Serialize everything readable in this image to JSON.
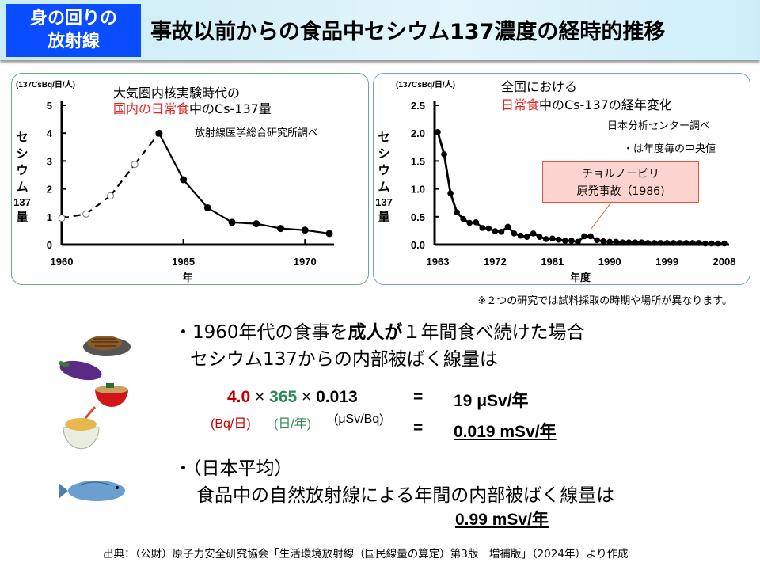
{
  "header": {
    "badge_line1": "身の回りの",
    "badge_line2": "放射線",
    "title": "事故以前からの食品中セシウム137濃度の経時的推移"
  },
  "chart_data": [
    {
      "type": "line",
      "unit": "(137CsBq/日/人)",
      "title_line1": "大気圏内核実験時代の",
      "title_line2_red": "国内の日常食",
      "title_line2_rest": "中のCs-137量",
      "source": "放射線医学総合研究所調べ",
      "ylabel": [
        "セ",
        "シ",
        "ウ",
        "ム",
        "137",
        "量"
      ],
      "xlabel": "年",
      "ylim": [
        0,
        5
      ],
      "yticks": [
        "0",
        "1",
        "2",
        "3",
        "4",
        "5"
      ],
      "xlim": [
        1960,
        1971
      ],
      "xticks": [
        "1960",
        "1965",
        "1970"
      ],
      "x": [
        1960,
        1961,
        1962,
        1963,
        1964,
        1965,
        1966,
        1967,
        1968,
        1969,
        1970,
        1971
      ],
      "y": [
        0.95,
        1.1,
        1.75,
        2.88,
        4.0,
        2.33,
        1.32,
        0.8,
        0.75,
        0.58,
        0.52,
        0.4
      ],
      "estimated_until": 1964
    },
    {
      "type": "line",
      "unit": "(137CsBq/日/人)",
      "title_line1": "全国における",
      "title_line2_red": "日常食",
      "title_line2_rest": "中のCs-137の経年変化",
      "source": "日本分析センター調べ",
      "note": "・は年度毎の中央値",
      "ylabel": [
        "セ",
        "シ",
        "ウ",
        "ム",
        "137",
        "量"
      ],
      "xlabel": "年度",
      "ylim": [
        0,
        2.5
      ],
      "yticks": [
        "0.0",
        "0.5",
        "1.0",
        "1.5",
        "2.0",
        "2.5"
      ],
      "xlim": [
        1963,
        2008
      ],
      "xticks": [
        "1963",
        "1972",
        "1981",
        "1990",
        "1999",
        "2008"
      ],
      "x": [
        1963,
        1964,
        1965,
        1966,
        1967,
        1968,
        1969,
        1970,
        1971,
        1972,
        1973,
        1974,
        1975,
        1976,
        1977,
        1978,
        1979,
        1980,
        1981,
        1982,
        1983,
        1984,
        1985,
        1986,
        1987,
        1988,
        1989,
        1990,
        1991,
        1992,
        1993,
        1994,
        1995,
        1996,
        1997,
        1998,
        1999,
        2000,
        2001,
        2002,
        2003,
        2004,
        2005,
        2006,
        2007,
        2008
      ],
      "y": [
        2.02,
        1.62,
        0.92,
        0.58,
        0.46,
        0.39,
        0.4,
        0.3,
        0.29,
        0.24,
        0.23,
        0.32,
        0.2,
        0.16,
        0.14,
        0.2,
        0.14,
        0.1,
        0.11,
        0.09,
        0.07,
        0.07,
        0.05,
        0.15,
        0.15,
        0.08,
        0.06,
        0.05,
        0.05,
        0.04,
        0.04,
        0.04,
        0.04,
        0.03,
        0.03,
        0.03,
        0.03,
        0.03,
        0.03,
        0.03,
        0.03,
        0.03,
        0.02,
        0.02,
        0.02,
        0.02
      ],
      "annotation": {
        "line1": "チョルノービリ",
        "line2": "原発事故（1986)"
      }
    }
  ],
  "note": "※２つの研究では試料採取の時期や場所が異なります。",
  "bullet1": {
    "line1_a": "・1960年代の食事を",
    "line1_bold": "成人が",
    "line1_b": "１年間食べ続けた場合",
    "line2": "セシウム137からの内部被ばく線量は"
  },
  "formula": {
    "v1": "4.0",
    "x1": "×",
    "v2": "365",
    "x2": "×",
    "v3": "0.013",
    "eq": "=",
    "r1": "19 μSv/年",
    "u1": "(Bq/日)",
    "u2": "(日/年)",
    "u3": "(μSv/Bq)",
    "eq2": "=",
    "r2": "0.019 mSv/年"
  },
  "bullet2": {
    "line1": "・（日本平均）",
    "line2": "食品中の自然放射線による年間の内部被ばく線量は",
    "value": "0.99 mSv/年"
  },
  "source": "出典：（公財）原子力安全研究協会「生活環境放射線（国民線量の算定）第3版　増補版」（2024年）より作成",
  "colors": {
    "red": "#c00000",
    "green": "#2e8b57",
    "badge": "#0a4cff",
    "annotation_fill": "#fdd3cf"
  }
}
